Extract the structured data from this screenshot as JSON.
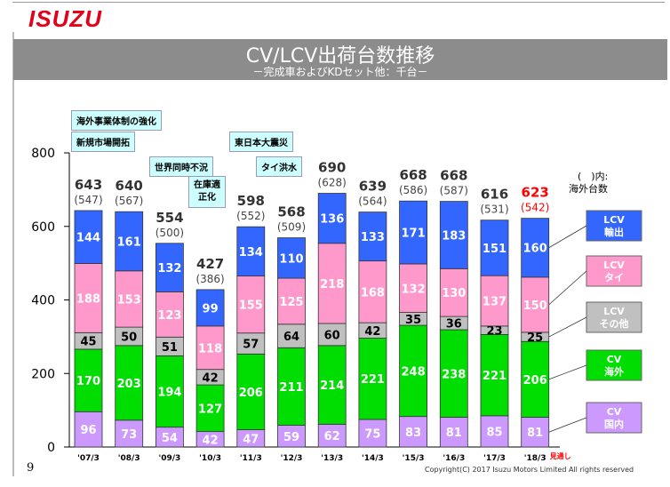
{
  "header": {
    "logo": "ISUZU",
    "title": "CV/LCV出荷台数推移",
    "subtitle": "－完成車およびKDセット他：千台－"
  },
  "notes": {
    "overseas_structure": "海外事業体制の強化",
    "new_markets": "新規市場開拓",
    "global_recession": "世界同時不況",
    "inventory_correction_1": "在庫適",
    "inventory_correction_2": "正化",
    "earthquake": "東日本大震災",
    "thai_flood": "タイ洪水"
  },
  "legend_note_1": "(　)内:",
  "legend_note_2": "海外台数",
  "page_number": "9",
  "copyright": "Copyright(C) 2017 Isuzu Motors Limited All rights reserved",
  "forecast_tag": "見通し",
  "chart_data": {
    "type": "bar",
    "stacked": true,
    "title": "CV/LCV出荷台数推移",
    "ylabel": "千台",
    "ylim": [
      0,
      800
    ],
    "yticks": [
      0,
      200,
      400,
      600,
      800
    ],
    "categories": [
      "'07/3",
      "'08/3",
      "'09/3",
      "'10/3",
      "'11/3",
      "'12/3",
      "'13/3",
      "'14/3",
      "'15/3",
      "'16/3",
      "'17/3",
      "'18/3"
    ],
    "series": [
      {
        "name": "CV 国内",
        "label_line1": "CV",
        "label_line2": "国内",
        "color": "#cc99ff",
        "values": [
          96,
          73,
          54,
          42,
          47,
          59,
          62,
          75,
          83,
          81,
          85,
          81
        ]
      },
      {
        "name": "CV 海外",
        "label_line1": "CV",
        "label_line2": "海外",
        "color": "#00dd00",
        "values": [
          170,
          203,
          194,
          127,
          206,
          211,
          214,
          221,
          248,
          238,
          221,
          206
        ]
      },
      {
        "name": "LCV その他",
        "label_line1": "LCV",
        "label_line2": "その他",
        "color": "#c0c0c0",
        "values": [
          45,
          50,
          51,
          42,
          57,
          64,
          60,
          42,
          35,
          36,
          23,
          25
        ]
      },
      {
        "name": "LCV タイ",
        "label_line1": "LCV",
        "label_line2": "タイ",
        "color": "#ff99cc",
        "values": [
          188,
          153,
          123,
          118,
          155,
          125,
          218,
          168,
          132,
          130,
          137,
          150
        ]
      },
      {
        "name": "LCV 輸出",
        "label_line1": "LCV",
        "label_line2": "輸出",
        "color": "#3366ff",
        "values": [
          144,
          161,
          132,
          99,
          134,
          110,
          136,
          133,
          171,
          183,
          151,
          160
        ]
      }
    ],
    "totals": [
      643,
      640,
      554,
      427,
      598,
      568,
      690,
      639,
      668,
      668,
      616,
      623
    ],
    "overseas_totals": [
      "(547)",
      "(567)",
      "(500)",
      "(386)",
      "(552)",
      "(509)",
      "(628)",
      "(564)",
      "(586)",
      "(587)",
      "(531)",
      "(542)"
    ],
    "highlight_last": true,
    "highlight_color": "#ff0000"
  }
}
